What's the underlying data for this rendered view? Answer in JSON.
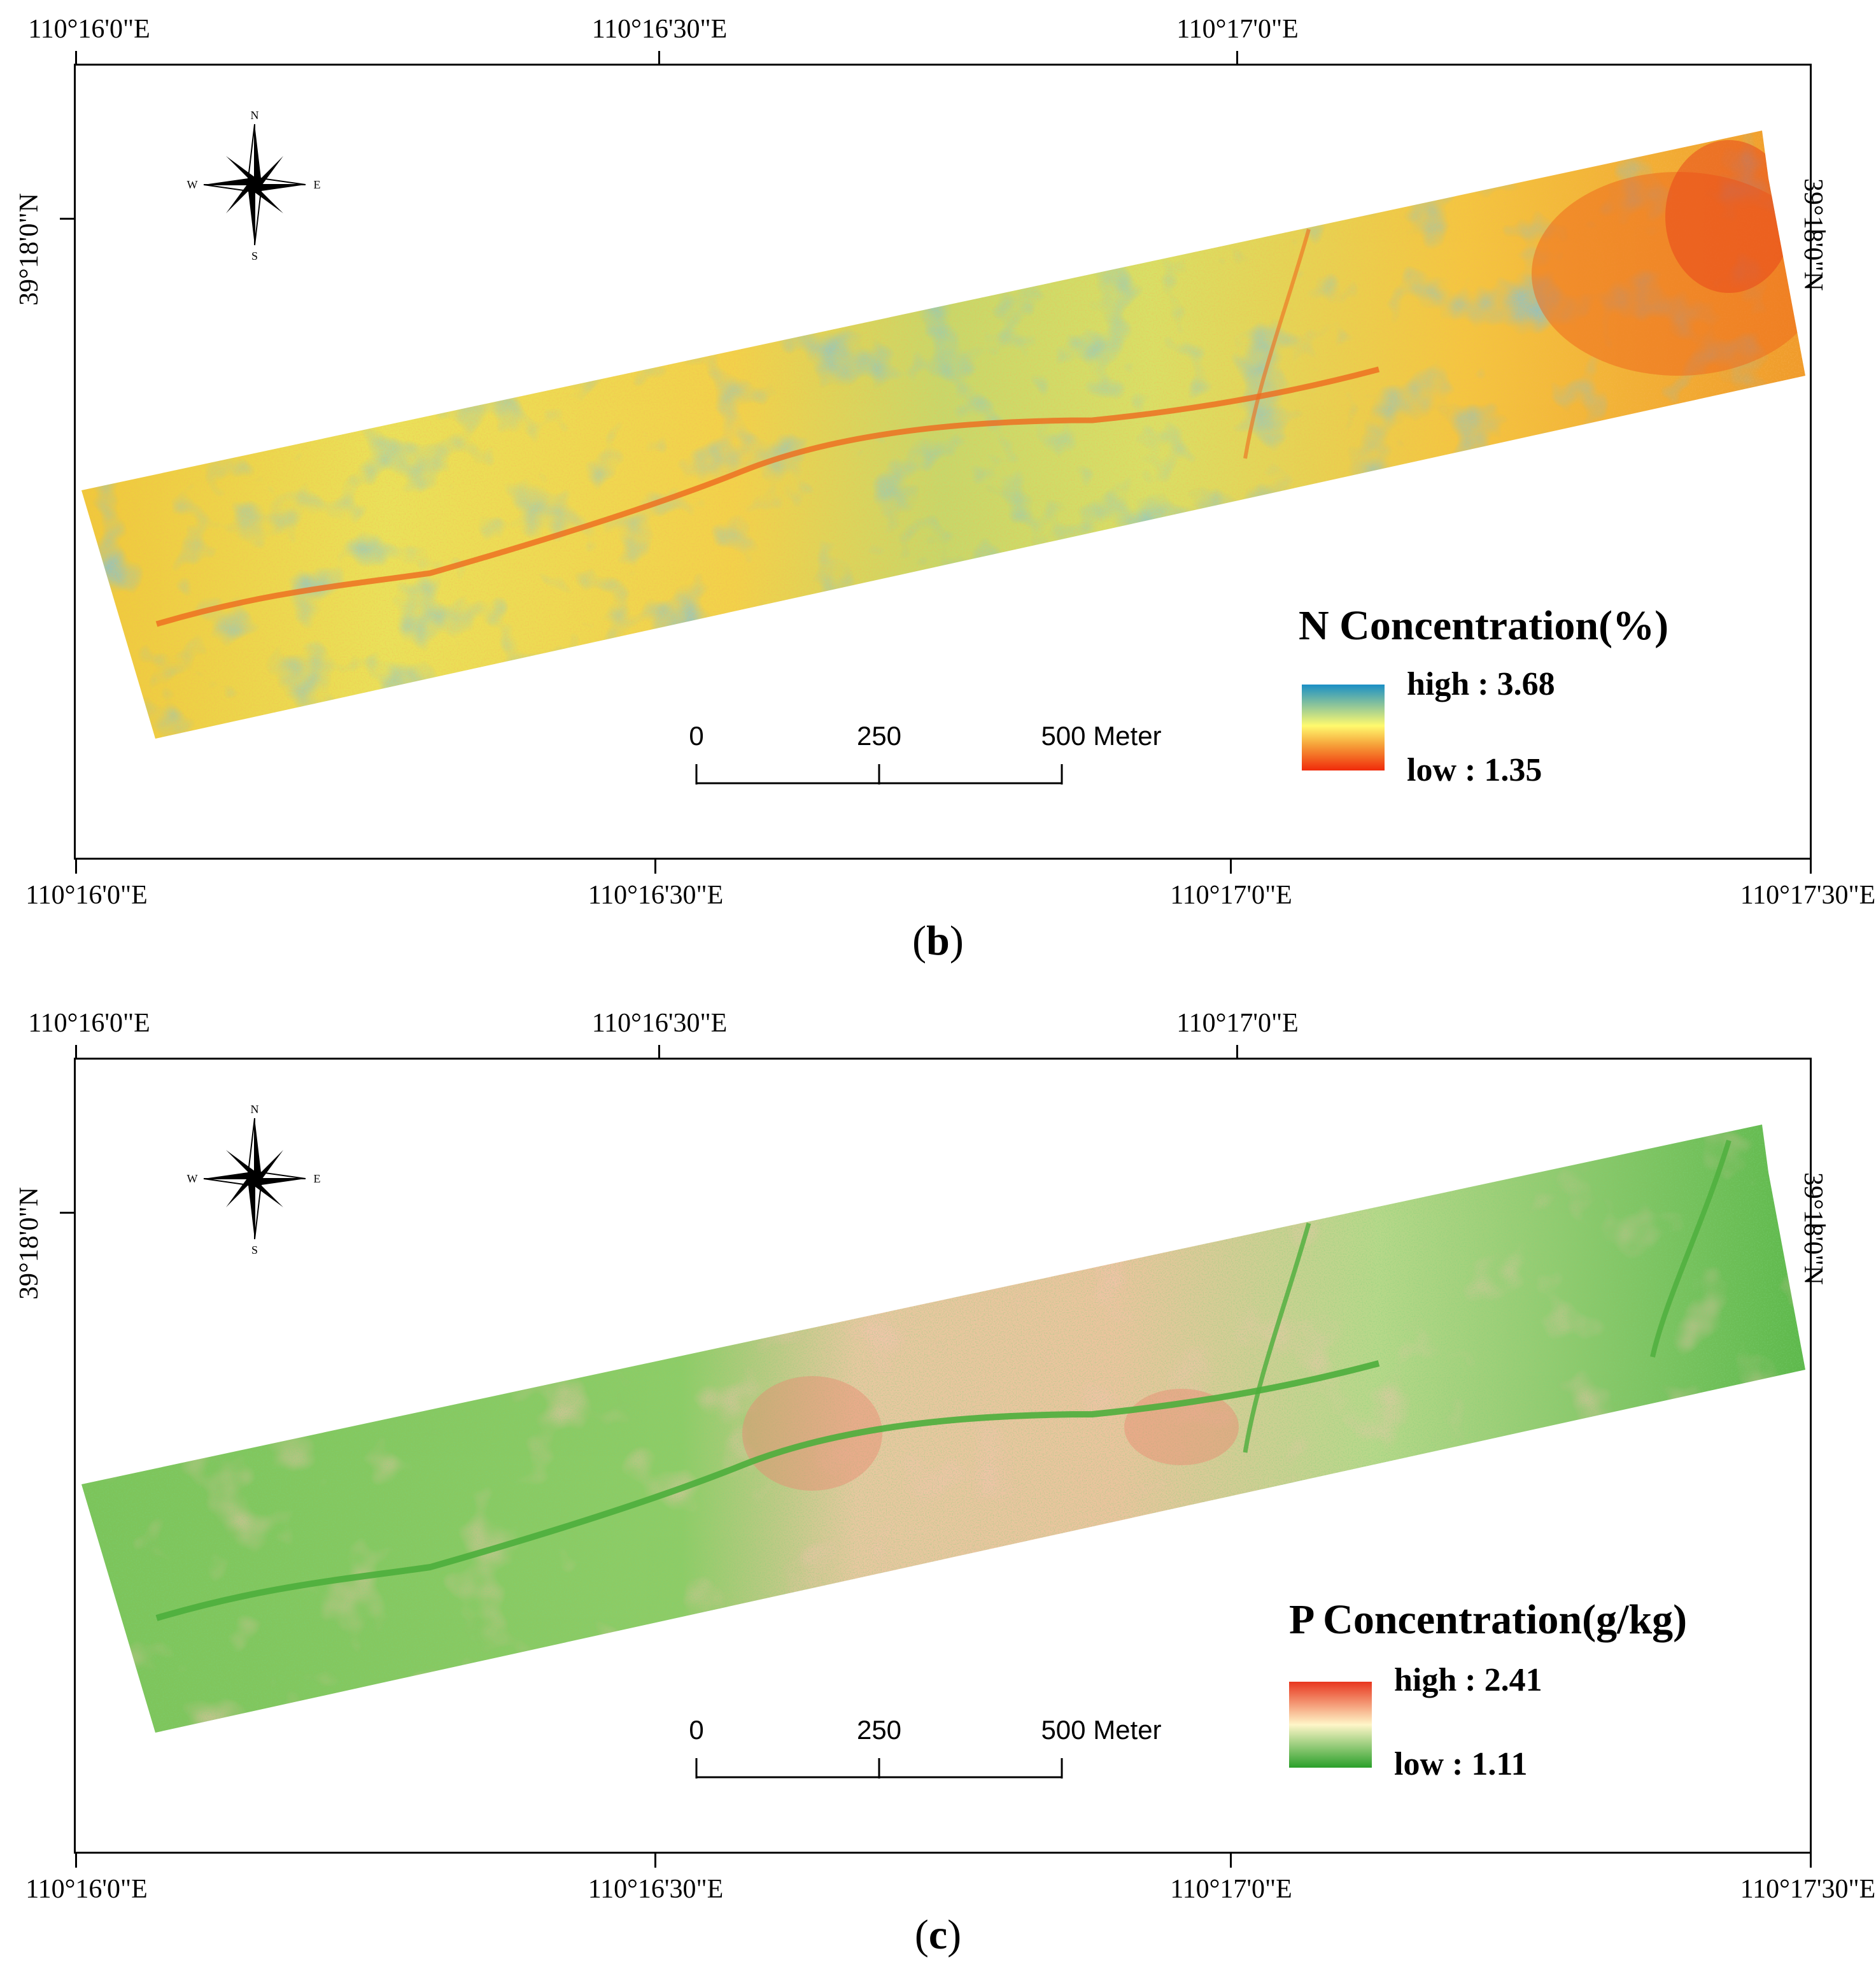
{
  "colors": {
    "n_high": "#1a8fc6",
    "n_mid": "#fffa6e",
    "n_low": "#f02a0a",
    "p_high": "#e8361e",
    "p_mid": "#fff6c8",
    "p_low": "#2aa02a"
  },
  "panels": [
    {
      "caption": "b",
      "top_coords": [
        "110°16'0\"E",
        "110°16'30\"E",
        "110°17'0\"E"
      ],
      "bottom_coords": [
        "110°16'0\"E",
        "110°16'30\"E",
        "110°17'0\"E",
        "110°17'30\"E"
      ],
      "left_coord": "39°18'0\"N",
      "right_coord": "39°18'0\"N",
      "compass": {
        "n": "N",
        "s": "S",
        "e": "E",
        "w": "W"
      },
      "scale": {
        "labels": [
          "0",
          "250",
          "500 Meter"
        ]
      },
      "legend": {
        "title": "N Concentration(%)",
        "high": "high : 3.68",
        "low": "low : 1.35"
      }
    },
    {
      "caption": "c",
      "top_coords": [
        "110°16'0\"E",
        "110°16'30\"E",
        "110°17'0\"E"
      ],
      "bottom_coords": [
        "110°16'0\"E",
        "110°16'30\"E",
        "110°17'0\"E",
        "110°17'30\"E"
      ],
      "left_coord": "39°18'0\"N",
      "right_coord": "39°18'0\"N",
      "compass": {
        "n": "N",
        "s": "S",
        "e": "E",
        "w": "W"
      },
      "scale": {
        "labels": [
          "0",
          "250",
          "500 Meter"
        ]
      },
      "legend": {
        "title": "P Concentration(g/kg)",
        "high": "high : 2.41",
        "low": "low : 1.11"
      }
    }
  ]
}
